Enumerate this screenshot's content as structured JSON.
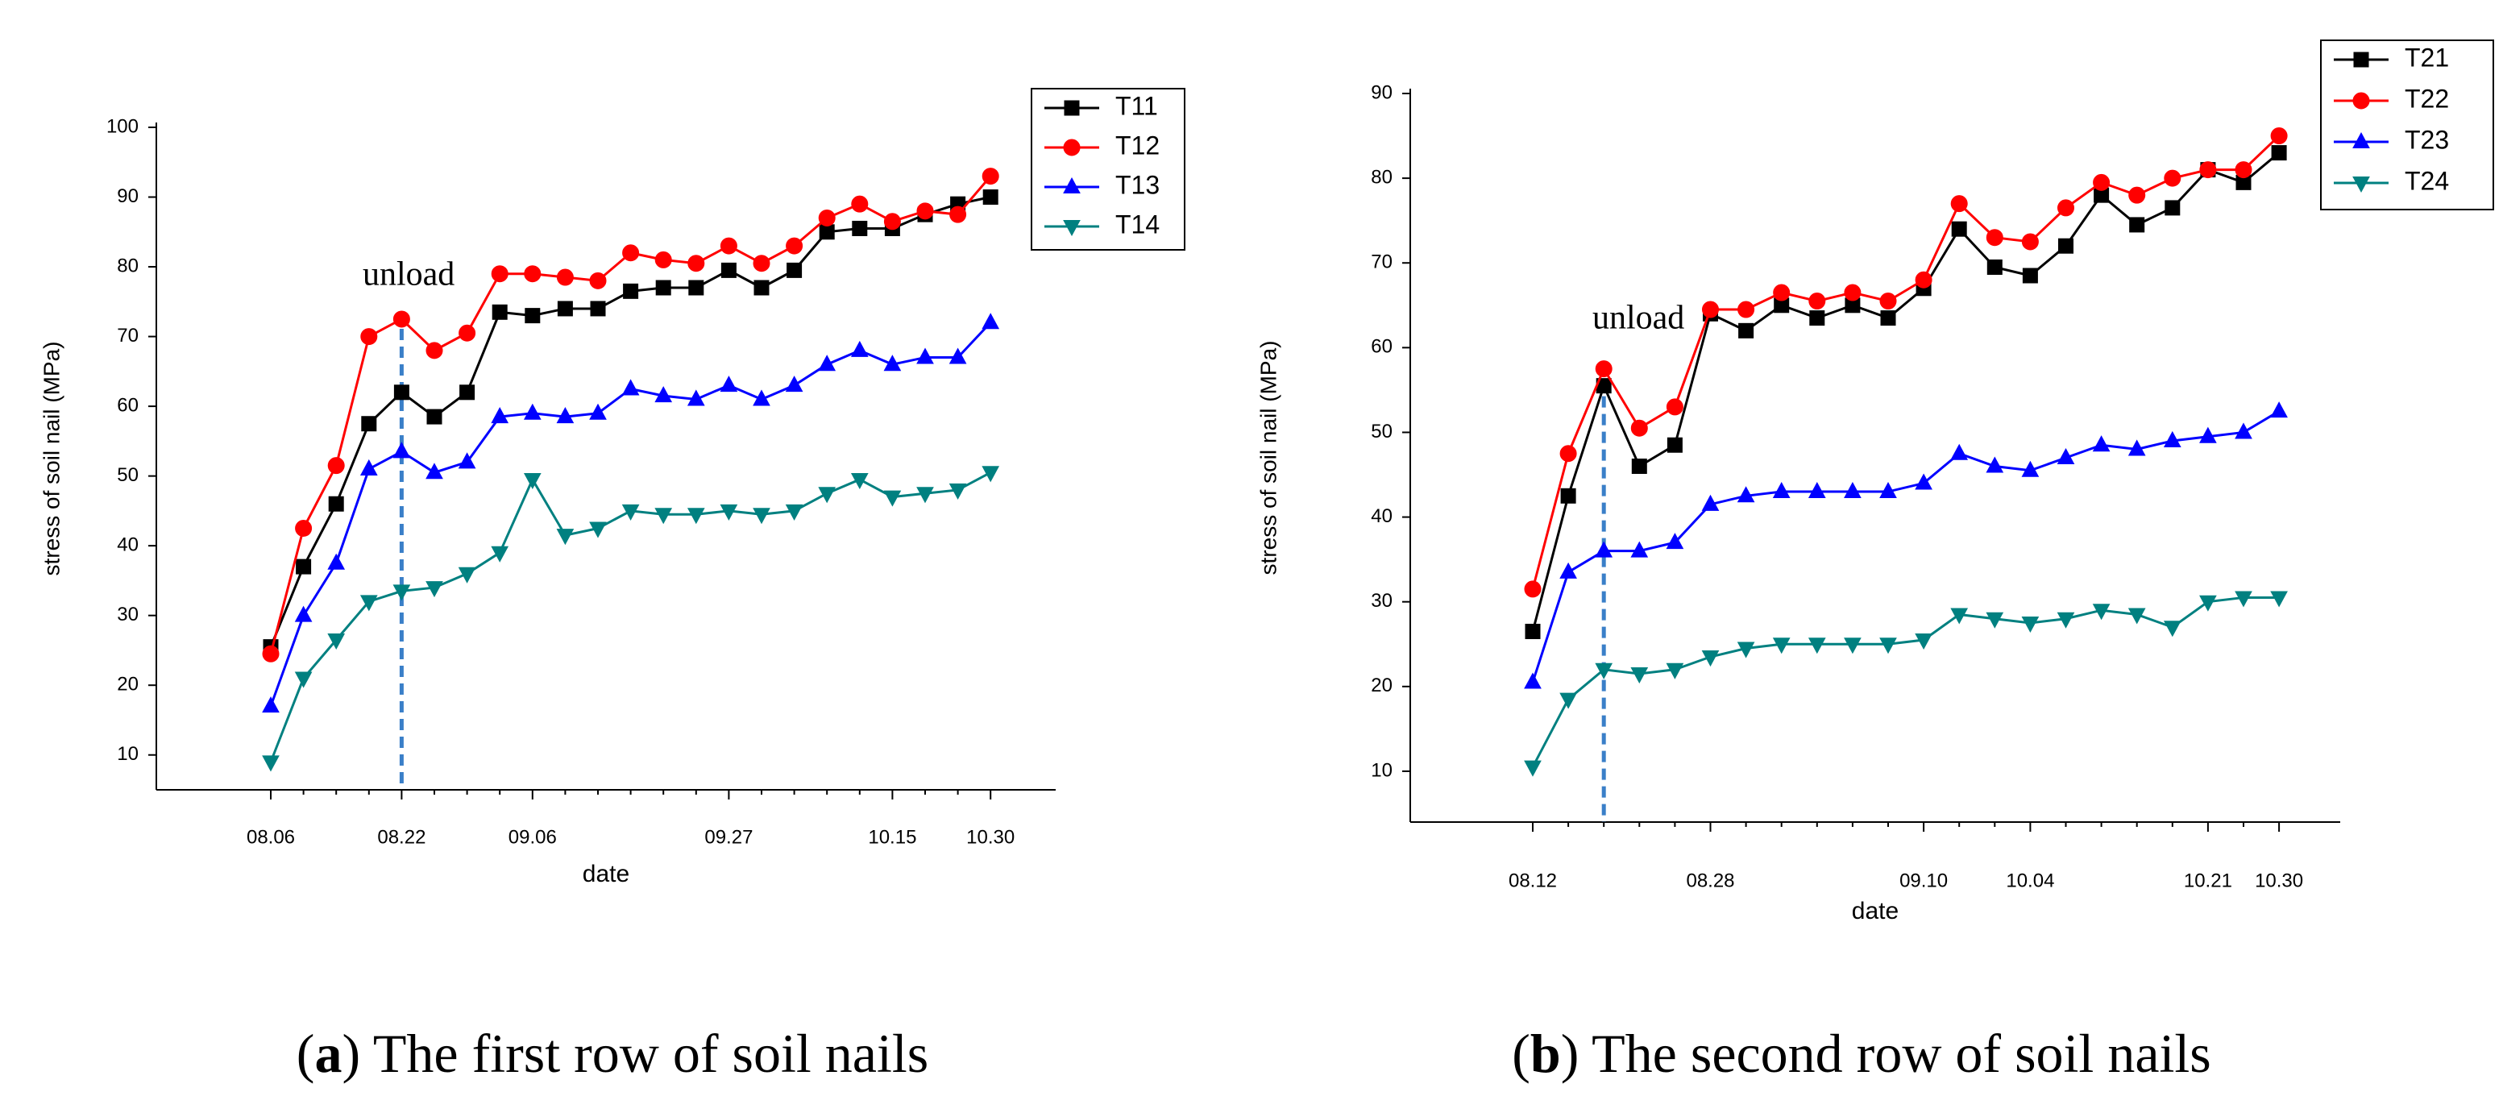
{
  "chart_data": [
    {
      "type": "line",
      "ylabel": "stress of soil nail (MPa)",
      "xlabel": "date",
      "caption": "(a) The first row of soil nails",
      "annotation": {
        "text": "unload",
        "at": 4
      },
      "categories": [
        "08.06",
        null,
        null,
        null,
        "08.22",
        null,
        null,
        null,
        "09.06",
        null,
        null,
        null,
        null,
        null,
        "09.27",
        null,
        null,
        null,
        null,
        "10.15",
        null,
        null,
        "10.30"
      ],
      "ylim": [
        5,
        100
      ],
      "yticks": [
        10,
        20,
        30,
        40,
        50,
        60,
        70,
        80,
        90,
        100
      ],
      "legend": "upper right",
      "series": [
        {
          "name": "T11",
          "color": "#000000",
          "marker": "square",
          "values": [
            25.5,
            37,
            46,
            57.5,
            62,
            58.5,
            62,
            73.5,
            73,
            74,
            74,
            76.5,
            77,
            77,
            79.5,
            77,
            79.5,
            85,
            85.5,
            85.5,
            87.5,
            89,
            90
          ]
        },
        {
          "name": "T12",
          "color": "#ff0000",
          "marker": "circle",
          "values": [
            24.5,
            42.5,
            51.5,
            70,
            72.5,
            68,
            70.5,
            79,
            79,
            78.5,
            78,
            82,
            81,
            80.5,
            83,
            80.5,
            83,
            87,
            89,
            86.5,
            88,
            87.5,
            93
          ]
        },
        {
          "name": "T13",
          "color": "#0000ff",
          "marker": "triangle-up",
          "values": [
            17,
            30,
            37.5,
            51,
            53.5,
            50.5,
            52,
            58.5,
            59,
            58.5,
            59,
            62.5,
            61.5,
            61,
            63,
            61,
            63,
            66,
            68,
            66,
            67,
            67,
            72
          ]
        },
        {
          "name": "T14",
          "color": "#008080",
          "marker": "triangle-down",
          "values": [
            9,
            21,
            26.5,
            32,
            33.5,
            34,
            36,
            39,
            49.5,
            41.5,
            42.5,
            45,
            44.5,
            44.5,
            45,
            44.5,
            45,
            47.5,
            49.5,
            47,
            47.5,
            48,
            50.5
          ]
        }
      ]
    },
    {
      "type": "line",
      "ylabel": "stress of soil nail (MPa)",
      "xlabel": "date",
      "caption": "(b) The second row of soil nails",
      "annotation": {
        "text": "unload",
        "at": 2
      },
      "categories": [
        "08.12",
        null,
        null,
        null,
        null,
        "08.28",
        null,
        null,
        null,
        null,
        null,
        "09.10",
        null,
        null,
        "10.04",
        null,
        null,
        null,
        null,
        "10.21",
        null,
        "10.30"
      ],
      "ylim": [
        4,
        90
      ],
      "yticks": [
        10,
        20,
        30,
        40,
        50,
        60,
        70,
        80,
        90
      ],
      "legend": "upper right",
      "series": [
        {
          "name": "T21",
          "color": "#000000",
          "marker": "square",
          "values": [
            26.5,
            42.5,
            55.5,
            46,
            48.5,
            64,
            62,
            65,
            63.5,
            65,
            63.5,
            67,
            74,
            69.5,
            68.5,
            72,
            78,
            74.5,
            76.5,
            81,
            79.5,
            83
          ]
        },
        {
          "name": "T22",
          "color": "#ff0000",
          "marker": "circle",
          "values": [
            31.5,
            47.5,
            57.5,
            50.5,
            53,
            64.5,
            64.5,
            66.5,
            65.5,
            66.5,
            65.5,
            68,
            77,
            73,
            72.5,
            76.5,
            79.5,
            78,
            80,
            81,
            81,
            85
          ]
        },
        {
          "name": "T23",
          "color": "#0000ff",
          "marker": "triangle-up",
          "values": [
            20.5,
            33.5,
            36,
            36,
            37,
            41.5,
            42.5,
            43,
            43,
            43,
            43,
            44,
            47.5,
            46,
            45.5,
            47,
            48.5,
            48,
            49,
            49.5,
            50,
            52.5
          ]
        },
        {
          "name": "T24",
          "color": "#008080",
          "marker": "triangle-down",
          "values": [
            10.5,
            18.5,
            22,
            21.5,
            22,
            23.5,
            24.5,
            25,
            25,
            25,
            25,
            25.5,
            28.5,
            28,
            27.5,
            28,
            29,
            28.5,
            27,
            30,
            30.5,
            30.5
          ]
        }
      ]
    }
  ]
}
